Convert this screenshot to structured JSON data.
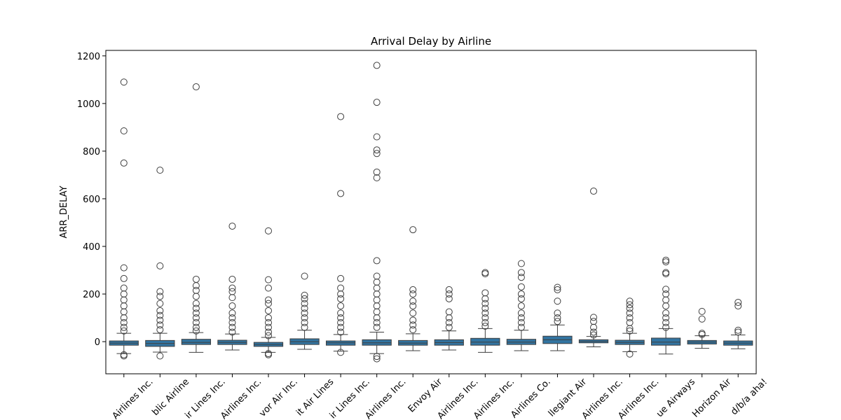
{
  "chart_data": {
    "type": "box",
    "title": "Arrival Delay by Airline",
    "y_label": "ARR_DELAY",
    "categories": [
      "Airlines Inc.",
      "blic Airline",
      "ir Lines Inc.",
      "Airlines Inc.",
      "vor Air Inc.",
      "it Air Lines",
      "ir Lines Inc.",
      "Airlines Inc.",
      "Envoy Air",
      "Airlines Inc.",
      "Airlines Inc.",
      "Airlines Co.",
      "llegiant Air",
      "Airlines Inc.",
      "Airlines Inc.",
      "ue Airways",
      "Horizon Air",
      "d/b/a aha!"
    ],
    "color": "#3274a1",
    "edge_color": "#3f3f3f",
    "ylim": [
      -135,
      1223
    ],
    "yticks": [
      0,
      200,
      400,
      600,
      800,
      1000,
      1200
    ],
    "boxes": [
      {
        "q1": -15,
        "median": -6,
        "q3": 3,
        "whislo": -50,
        "whishi": 35,
        "fliers": [
          1090,
          885,
          750,
          310,
          265,
          225,
          200,
          175,
          150,
          125,
          100,
          80,
          60,
          45,
          -55,
          -60
        ]
      },
      {
        "q1": -20,
        "median": -8,
        "q3": 5,
        "whislo": -44,
        "whishi": 35,
        "fliers": [
          720,
          318,
          210,
          190,
          160,
          130,
          110,
          90,
          70,
          50,
          -60
        ]
      },
      {
        "q1": -12,
        "median": -3,
        "q3": 10,
        "whislo": -45,
        "whishi": 38,
        "fliers": [
          1070,
          262,
          235,
          215,
          190,
          160,
          140,
          120,
          100,
          80,
          60,
          45
        ]
      },
      {
        "q1": -12,
        "median": -3,
        "q3": 6,
        "whislo": -35,
        "whishi": 32,
        "fliers": [
          485,
          262,
          225,
          210,
          185,
          150,
          120,
          100,
          80,
          60,
          40
        ]
      },
      {
        "q1": -20,
        "median": -12,
        "q3": -3,
        "whislo": -45,
        "whishi": 18,
        "fliers": [
          465,
          260,
          225,
          175,
          160,
          130,
          100,
          80,
          60,
          40,
          25,
          -50,
          -55
        ]
      },
      {
        "q1": -12,
        "median": 0,
        "q3": 12,
        "whislo": -32,
        "whishi": 48,
        "fliers": [
          275,
          195,
          180,
          160,
          140,
          120,
          100,
          80,
          60
        ]
      },
      {
        "q1": -15,
        "median": -5,
        "q3": 3,
        "whislo": -40,
        "whishi": 30,
        "fliers": [
          945,
          622,
          265,
          225,
          200,
          180,
          150,
          120,
          100,
          80,
          60,
          40,
          -45
        ]
      },
      {
        "q1": -15,
        "median": -5,
        "q3": 8,
        "whislo": -50,
        "whishi": 40,
        "fliers": [
          1160,
          1005,
          860,
          805,
          790,
          712,
          688,
          340,
          275,
          250,
          225,
          200,
          175,
          150,
          125,
          100,
          80,
          60,
          -62,
          -72
        ]
      },
      {
        "q1": -15,
        "median": -6,
        "q3": 5,
        "whislo": -38,
        "whishi": 33,
        "fliers": [
          470,
          218,
          200,
          170,
          150,
          120,
          90,
          70,
          50
        ]
      },
      {
        "q1": -15,
        "median": -4,
        "q3": 8,
        "whislo": -35,
        "whishi": 45,
        "fliers": [
          218,
          200,
          180,
          125,
          100,
          80,
          60
        ]
      },
      {
        "q1": -15,
        "median": -2,
        "q3": 14,
        "whislo": -45,
        "whishi": 55,
        "fliers": [
          290,
          285,
          205,
          180,
          160,
          140,
          120,
          100,
          80,
          65
        ]
      },
      {
        "q1": -12,
        "median": -2,
        "q3": 10,
        "whislo": -38,
        "whishi": 48,
        "fliers": [
          328,
          290,
          270,
          230,
          200,
          180,
          150,
          120,
          100,
          80,
          60
        ]
      },
      {
        "q1": -8,
        "median": 8,
        "q3": 23,
        "whislo": -38,
        "whishi": 70,
        "fliers": [
          228,
          218,
          170,
          120,
          100,
          85
        ]
      },
      {
        "q1": -5,
        "median": 1,
        "q3": 8,
        "whislo": -22,
        "whishi": 22,
        "fliers": [
          632,
          102,
          85,
          60,
          40,
          28
        ]
      },
      {
        "q1": -12,
        "median": -3,
        "q3": 6,
        "whislo": -42,
        "whishi": 35,
        "fliers": [
          170,
          155,
          140,
          120,
          100,
          80,
          55,
          45,
          -52
        ]
      },
      {
        "q1": -15,
        "median": -2,
        "q3": 15,
        "whislo": -52,
        "whishi": 55,
        "fliers": [
          342,
          335,
          290,
          285,
          220,
          200,
          175,
          150,
          120,
          100,
          80,
          60
        ]
      },
      {
        "q1": -10,
        "median": -2,
        "q3": 5,
        "whislo": -28,
        "whishi": 25,
        "fliers": [
          127,
          95,
          35,
          30
        ]
      },
      {
        "q1": -15,
        "median": -6,
        "q3": 3,
        "whislo": -30,
        "whishi": 28,
        "fliers": [
          165,
          150,
          48,
          40
        ]
      }
    ]
  }
}
